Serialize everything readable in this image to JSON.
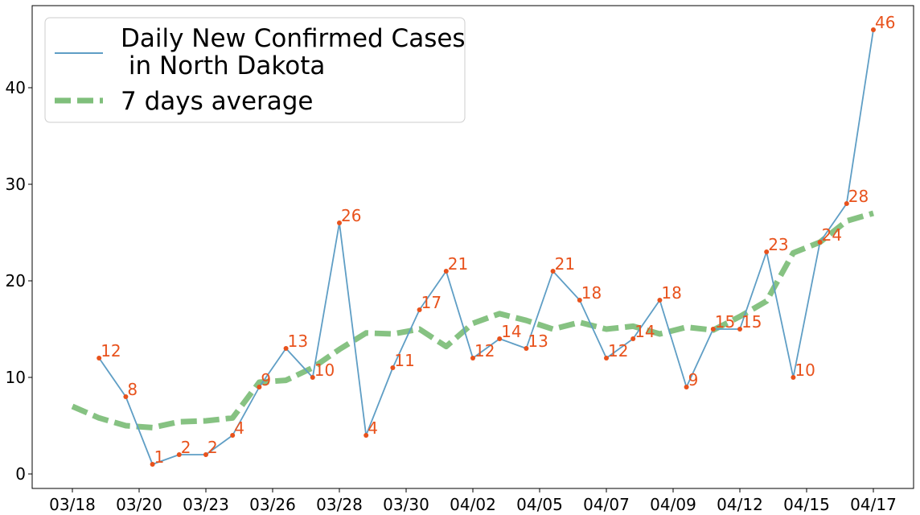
{
  "chart_data": {
    "type": "line",
    "title": "",
    "xlabel": "",
    "ylabel": "",
    "x_tick_labels": [
      "03/18",
      "03/20",
      "03/23",
      "03/26",
      "03/28",
      "03/30",
      "04/02",
      "04/05",
      "04/07",
      "04/09",
      "04/12",
      "04/15",
      "04/17"
    ],
    "y_ticks": [
      0,
      10,
      20,
      30,
      40
    ],
    "ylim": [
      -1.5,
      48.5
    ],
    "series": [
      {
        "name": "Daily New Confirmed Cases\n in North Dakota",
        "color": "#5f9ec5",
        "marker_color": "#e8521c",
        "values": [
          null,
          12,
          8,
          1,
          2,
          2,
          4,
          9,
          13,
          10,
          26,
          4,
          11,
          17,
          21,
          12,
          14,
          13,
          21,
          18,
          12,
          14,
          18,
          9,
          15,
          15,
          23,
          10,
          24,
          28,
          46
        ]
      },
      {
        "name": "7 days average",
        "color": "#7fbf7b",
        "style": "dashed",
        "values": [
          7.0,
          5.8,
          5.0,
          4.8,
          5.4,
          5.5,
          5.8,
          9.5,
          9.7,
          11.0,
          12.9,
          14.6,
          14.5,
          15.0,
          13.2,
          15.6,
          16.6,
          15.9,
          15.0,
          15.7,
          15.0,
          15.3,
          14.5,
          15.2,
          14.9,
          16.3,
          17.9,
          22.9,
          24.0,
          26.2,
          27.0
        ]
      }
    ],
    "data_labels": [
      "",
      "12",
      "8",
      "1",
      "2",
      "2",
      "4",
      "9",
      "13",
      "10",
      "26",
      "4",
      "11",
      "17",
      "21",
      "12",
      "14",
      "13",
      "21",
      "18",
      "12",
      "14",
      "18",
      "9",
      "15",
      "15",
      "23",
      "10",
      "24",
      "28",
      "46"
    ],
    "legend": {
      "placement": "top-left",
      "entries": [
        "Daily New Confirmed Cases\n in North Dakota",
        "7 days average"
      ]
    },
    "grid": false
  }
}
